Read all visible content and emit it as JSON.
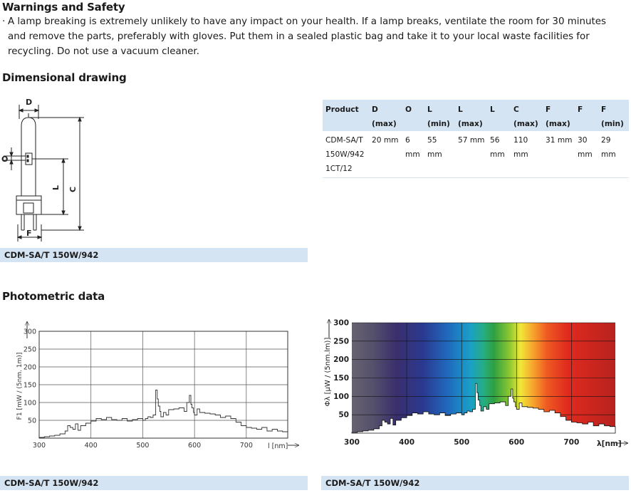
{
  "warnings": {
    "title": "Warnings and Safety",
    "bullet": "·",
    "text": "A lamp breaking is extremely unlikely to have any impact on your health. If a lamp breaks, ventilate the room for 30 minutes and remove the parts, preferably with gloves. Put them in a sealed plastic bag and take it to your local waste facilities for recycling. Do not use a vacuum cleaner."
  },
  "dimensional": {
    "title": "Dimensional drawing",
    "drawing_labels": {
      "D": "D",
      "O": "O",
      "L": "L",
      "C": "C",
      "F": "F"
    },
    "caption": "CDM-SA/T 150W/942",
    "table": {
      "headers": [
        "Product",
        "D (max)",
        "O",
        "L (min)",
        "L (max)",
        "L",
        "C (max)",
        "F (max)",
        "F",
        "F (min)"
      ],
      "rows": [
        [
          "CDM-SA/T 150W/942 1CT/12",
          "20 mm",
          "6 mm",
          "55 mm",
          "57 mm",
          "56 mm",
          "110 mm",
          "31 mm",
          "30 mm",
          "29 mm"
        ]
      ]
    }
  },
  "photometric": {
    "title": "Photometric data",
    "caption_left": "CDM-SA/T 150W/942",
    "caption_right": "CDM-SA/T 150W/942"
  },
  "chart_data": [
    {
      "type": "line",
      "ylabel": "F1 [mW / (5nm. 1m)]",
      "xlabel": "l [nm]",
      "xlim": [
        300,
        780
      ],
      "ylim": [
        0,
        300
      ],
      "xticks": [
        300,
        400,
        500,
        600,
        700
      ],
      "yticks": [
        50,
        100,
        150,
        200,
        250,
        300
      ],
      "grid": true,
      "series": [
        {
          "x": [
            300,
            310,
            320,
            330,
            340,
            350,
            355,
            360,
            365,
            370,
            375,
            380,
            390,
            400,
            410,
            420,
            430,
            440,
            450,
            460,
            470,
            480,
            490,
            500,
            505,
            510,
            515,
            520,
            525,
            528,
            530,
            533,
            535,
            540,
            545,
            550,
            560,
            570,
            580,
            585,
            590,
            593,
            595,
            598,
            600,
            605,
            610,
            620,
            630,
            640,
            650,
            660,
            670,
            680,
            690,
            700,
            710,
            720,
            730,
            740,
            750,
            760,
            770,
            780
          ],
          "y": [
            2,
            4,
            6,
            8,
            12,
            20,
            35,
            30,
            25,
            40,
            22,
            35,
            42,
            48,
            55,
            52,
            58,
            52,
            50,
            55,
            48,
            52,
            55,
            50,
            55,
            60,
            58,
            65,
            135,
            110,
            90,
            75,
            60,
            72,
            65,
            80,
            82,
            85,
            75,
            100,
            120,
            95,
            85,
            72,
            65,
            82,
            72,
            70,
            68,
            65,
            58,
            62,
            55,
            45,
            35,
            30,
            28,
            25,
            30,
            20,
            25,
            20,
            18,
            15
          ]
        }
      ]
    },
    {
      "type": "area",
      "ylabel": "Φλ [μW / (5nm.lm)]",
      "xlabel": "λ[nm]",
      "xlim": [
        300,
        780
      ],
      "ylim": [
        0,
        300
      ],
      "xticks": [
        300,
        400,
        500,
        600,
        700
      ],
      "yticks": [
        50,
        100,
        150,
        200,
        250,
        300
      ],
      "grid": true,
      "series": [
        {
          "x": [
            300,
            310,
            320,
            330,
            340,
            350,
            355,
            360,
            365,
            370,
            375,
            380,
            390,
            400,
            410,
            420,
            430,
            440,
            450,
            460,
            470,
            480,
            490,
            500,
            505,
            510,
            515,
            520,
            525,
            528,
            530,
            533,
            535,
            540,
            545,
            550,
            560,
            570,
            580,
            585,
            590,
            593,
            595,
            598,
            600,
            605,
            610,
            620,
            630,
            640,
            650,
            660,
            670,
            680,
            690,
            700,
            710,
            720,
            730,
            740,
            750,
            760,
            770,
            780
          ],
          "y": [
            2,
            4,
            6,
            8,
            12,
            20,
            35,
            30,
            25,
            40,
            22,
            35,
            42,
            48,
            55,
            52,
            58,
            52,
            50,
            55,
            48,
            52,
            55,
            50,
            55,
            60,
            58,
            65,
            135,
            110,
            90,
            75,
            60,
            72,
            65,
            80,
            82,
            85,
            75,
            100,
            120,
            95,
            85,
            72,
            65,
            82,
            72,
            70,
            68,
            65,
            58,
            62,
            55,
            45,
            35,
            30,
            28,
            25,
            30,
            20,
            25,
            20,
            18,
            15
          ]
        }
      ]
    }
  ]
}
